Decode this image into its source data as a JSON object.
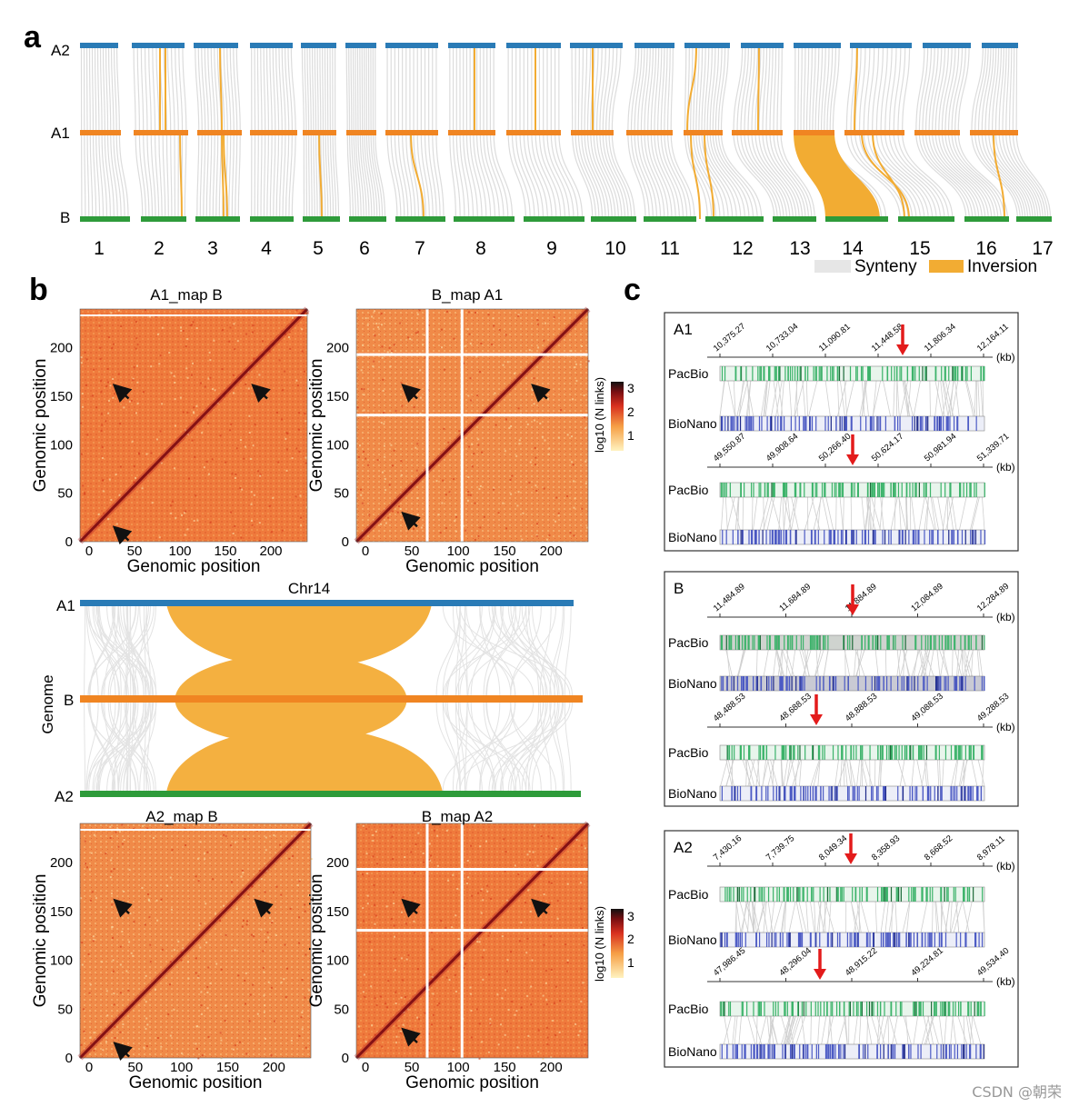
{
  "panels": {
    "a": "a",
    "b": "b",
    "c": "c"
  },
  "panel_a": {
    "tracks": [
      "A2",
      "A1",
      "B"
    ],
    "track_colors": {
      "A2": "#2a7bb6",
      "A1": "#f08522",
      "B": "#2e9b3a"
    },
    "chromosomes": [
      "1",
      "2",
      "3",
      "4",
      "5",
      "6",
      "7",
      "8",
      "9",
      "10",
      "11",
      "12",
      "13",
      "14",
      "15",
      "16",
      "17"
    ],
    "legend": [
      {
        "label": "Synteny",
        "color": "#e6e6e6"
      },
      {
        "label": "Inversion",
        "color": "#f2ac33"
      }
    ]
  },
  "heatmaps": [
    {
      "title": "A1_map B",
      "xlabel": "Genomic position",
      "ylabel": "Genomic position",
      "xticks": [
        "0",
        "50",
        "100",
        "150",
        "200"
      ],
      "yticks": [
        "0",
        "50",
        "100",
        "150",
        "200"
      ]
    },
    {
      "title": "B_map A1",
      "xlabel": "Genomic position",
      "ylabel": "Genomic position",
      "xticks": [
        "0",
        "50",
        "100",
        "150",
        "200"
      ],
      "yticks": [
        "0",
        "50",
        "100",
        "150",
        "200"
      ]
    },
    {
      "title": "A2_map B",
      "xlabel": "Genomic position",
      "ylabel": "Genomic position",
      "xticks": [
        "0",
        "50",
        "100",
        "150",
        "200"
      ],
      "yticks": [
        "0",
        "50",
        "100",
        "150",
        "200"
      ]
    },
    {
      "title": "B_map A2",
      "xlabel": "Genomic position",
      "ylabel": "Genomic position",
      "xticks": [
        "0",
        "50",
        "100",
        "150",
        "200"
      ],
      "yticks": [
        "0",
        "50",
        "100",
        "150",
        "200"
      ]
    }
  ],
  "colorbar": {
    "label": "log10 (N links)",
    "ticks": [
      "3",
      "2",
      "1"
    ]
  },
  "chr14": {
    "title": "Chr14",
    "ylabel": "Genome",
    "tracks": [
      "A1",
      "B",
      "A2"
    ]
  },
  "panel_c": [
    {
      "genome": "A1",
      "rows": [
        {
          "ticks": [
            "10,375.27",
            "10,733.04",
            "11,090.81",
            "11,448.58",
            "11,806.34",
            "12,164.11"
          ],
          "unit": "(kb)",
          "labels": [
            "PacBio",
            "BioNano"
          ]
        },
        {
          "ticks": [
            "49,550.87",
            "49,908.64",
            "50,266.40",
            "50,624.17",
            "50,981.94",
            "51,339.71"
          ],
          "unit": "(kb)",
          "labels": [
            "PacBio",
            "BioNano"
          ]
        }
      ]
    },
    {
      "genome": "B",
      "rows": [
        {
          "ticks": [
            "11,484.89",
            "11,684.89",
            "11,884.89",
            "12,084.89",
            "12,284.89"
          ],
          "unit": "(kb)",
          "labels": [
            "PacBio",
            "BioNano"
          ]
        },
        {
          "ticks": [
            "48,488.53",
            "48,688.53",
            "48,888.53",
            "49,088.53",
            "49,288.53"
          ],
          "unit": "(kb)",
          "labels": [
            "PacBio",
            "BioNano"
          ]
        }
      ]
    },
    {
      "genome": "A2",
      "rows": [
        {
          "ticks": [
            "7,430.16",
            "7,739.75",
            "8,049.34",
            "8,358.93",
            "8,668.52",
            "8,978.11"
          ],
          "unit": "(kb)",
          "labels": [
            "PacBio",
            "BioNano"
          ]
        },
        {
          "ticks": [
            "47,986.45",
            "48,296.04",
            "48,915.22",
            "49,224.81",
            "49,534.40"
          ],
          "unit": "(kb)",
          "labels": [
            "PacBio",
            "BioNano"
          ]
        }
      ]
    }
  ],
  "watermark": "CSDN @朝荣"
}
